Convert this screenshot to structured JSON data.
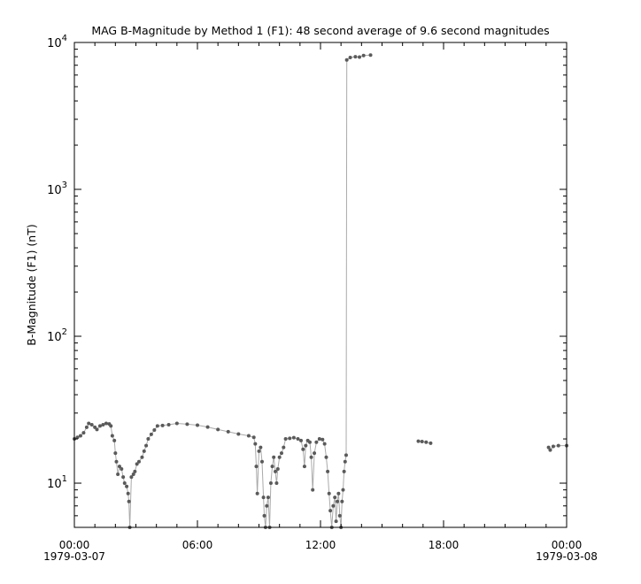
{
  "chart_data": {
    "type": "scatter",
    "title": "MAG  B-Magnitude by Method 1 (F1): 48 second average of 9.6 second magnitudes",
    "ylabel": "B-Magnitude (F1) (nT)",
    "xlabel": "",
    "yscale": "log",
    "ylim": [
      5,
      10000
    ],
    "xlim_hours": [
      0,
      24
    ],
    "y_ticks": [
      {
        "base": "10",
        "exp": "1",
        "value": 10
      },
      {
        "base": "10",
        "exp": "2",
        "value": 100
      },
      {
        "base": "10",
        "exp": "3",
        "value": 1000
      },
      {
        "base": "10",
        "exp": "4",
        "value": 10000
      }
    ],
    "x_ticks": [
      {
        "hour": 0,
        "label": "00:00",
        "date": "1979-03-07"
      },
      {
        "hour": 6,
        "label": "06:00",
        "date": ""
      },
      {
        "hour": 12,
        "label": "12:00",
        "date": ""
      },
      {
        "hour": 18,
        "label": "18:00",
        "date": ""
      },
      {
        "hour": 24,
        "label": "00:00",
        "date": "1979-03-08"
      }
    ],
    "grid": false,
    "colors": {
      "points": "#5a5a5a",
      "lines": "#aaaaaa"
    },
    "segments": [
      [
        [
          0,
          20
        ],
        [
          0.15,
          20.5
        ],
        [
          0.3,
          21
        ],
        [
          0.45,
          22
        ],
        [
          0.6,
          24
        ],
        [
          0.7,
          25.5
        ],
        [
          0.85,
          25
        ],
        [
          1.0,
          24
        ],
        [
          1.1,
          23.2
        ],
        [
          1.25,
          24.5
        ],
        [
          1.4,
          25
        ],
        [
          1.55,
          25.5
        ],
        [
          1.7,
          25.3
        ],
        [
          1.78,
          24.5
        ],
        [
          1.85,
          21
        ],
        [
          1.95,
          19.5
        ],
        [
          2.0,
          16
        ],
        [
          2.05,
          14
        ],
        [
          2.12,
          11.5
        ],
        [
          2.2,
          13
        ],
        [
          2.3,
          12.5
        ],
        [
          2.38,
          11
        ],
        [
          2.45,
          10
        ],
        [
          2.55,
          9.5
        ],
        [
          2.62,
          8.5
        ],
        [
          2.66,
          7.5
        ],
        [
          2.7,
          5
        ],
        [
          2.78,
          11
        ],
        [
          2.88,
          11.5
        ],
        [
          2.95,
          12
        ],
        [
          3.05,
          13.5
        ],
        [
          3.15,
          14
        ],
        [
          3.3,
          15
        ],
        [
          3.4,
          16.5
        ],
        [
          3.5,
          18
        ],
        [
          3.6,
          20
        ],
        [
          3.75,
          21.5
        ],
        [
          3.9,
          23
        ],
        [
          4.05,
          24.5
        ],
        [
          4.3,
          24.7
        ],
        [
          4.6,
          25
        ],
        [
          5.0,
          25.5
        ],
        [
          5.5,
          25.2
        ],
        [
          6.0,
          24.8
        ],
        [
          6.5,
          24.1
        ],
        [
          7.0,
          23.2
        ],
        [
          7.5,
          22.4
        ],
        [
          8.0,
          21.6
        ],
        [
          8.5,
          21
        ],
        [
          8.75,
          20.5
        ],
        [
          8.82,
          18.5
        ],
        [
          8.87,
          13
        ],
        [
          8.92,
          8.5
        ],
        [
          9.0,
          16.5
        ],
        [
          9.08,
          17.5
        ],
        [
          9.15,
          14
        ],
        [
          9.22,
          8
        ],
        [
          9.26,
          6
        ],
        [
          9.32,
          5
        ],
        [
          9.38,
          7
        ],
        [
          9.45,
          8
        ],
        [
          9.52,
          5
        ],
        [
          9.58,
          10
        ],
        [
          9.65,
          13
        ],
        [
          9.72,
          15
        ],
        [
          9.8,
          12
        ],
        [
          9.86,
          10
        ],
        [
          9.92,
          12.5
        ],
        [
          10.0,
          15
        ],
        [
          10.1,
          16
        ],
        [
          10.2,
          17.5
        ],
        [
          10.3,
          20
        ],
        [
          10.5,
          20.2
        ],
        [
          10.7,
          20.4
        ],
        [
          10.9,
          20
        ],
        [
          11.05,
          19.5
        ],
        [
          11.15,
          17
        ],
        [
          11.22,
          13
        ],
        [
          11.28,
          18
        ],
        [
          11.38,
          19.5
        ],
        [
          11.48,
          19
        ],
        [
          11.55,
          15
        ],
        [
          11.62,
          9
        ],
        [
          11.7,
          16
        ],
        [
          11.8,
          19
        ],
        [
          11.95,
          20
        ],
        [
          12.1,
          19.8
        ],
        [
          12.2,
          18.5
        ],
        [
          12.28,
          15
        ],
        [
          12.35,
          12
        ],
        [
          12.42,
          8.5
        ],
        [
          12.48,
          6.5
        ],
        [
          12.55,
          5
        ],
        [
          12.62,
          7
        ],
        [
          12.7,
          8
        ],
        [
          12.76,
          5.5
        ],
        [
          12.82,
          7.5
        ],
        [
          12.88,
          8.5
        ],
        [
          12.94,
          6
        ],
        [
          13.0,
          5
        ],
        [
          13.05,
          7.5
        ],
        [
          13.1,
          9
        ],
        [
          13.15,
          12
        ],
        [
          13.2,
          14
        ],
        [
          13.25,
          15.5
        ],
        [
          13.28,
          7600
        ],
        [
          13.45,
          7900
        ],
        [
          13.7,
          8000
        ],
        [
          13.9,
          7950
        ],
        [
          14.1,
          8150
        ],
        [
          14.44,
          8200
        ]
      ],
      [
        [
          16.77,
          19.3
        ],
        [
          16.95,
          19.2
        ],
        [
          17.15,
          19.0
        ],
        [
          17.37,
          18.7
        ]
      ],
      [
        [
          23.12,
          17.5
        ],
        [
          23.2,
          16.8
        ],
        [
          23.35,
          17.8
        ],
        [
          23.6,
          18
        ],
        [
          24.0,
          18
        ]
      ]
    ]
  }
}
